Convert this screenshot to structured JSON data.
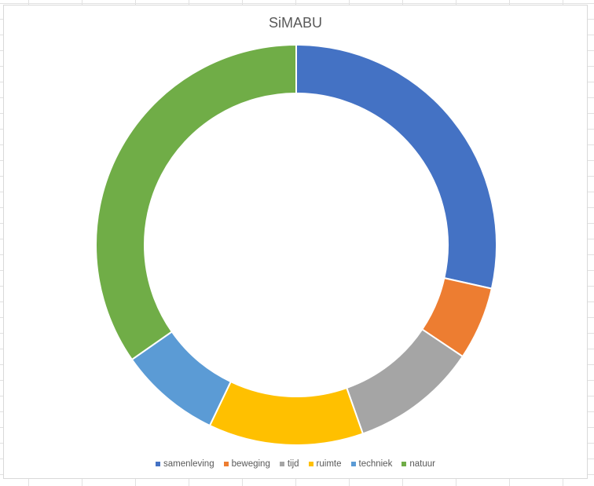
{
  "chart_data": {
    "type": "pie",
    "variant": "doughnut",
    "title": "SiMABU",
    "categories": [
      "samenleving",
      "beweging",
      "tijd",
      "ruimte",
      "techniek",
      "natuur"
    ],
    "values": [
      28.5,
      5.9,
      10.2,
      12.5,
      8.2,
      34.7
    ],
    "colors": [
      "#4472C4",
      "#ED7D31",
      "#A5A5A5",
      "#FFC000",
      "#5B9BD5",
      "#70AD47"
    ],
    "legend_position": "bottom",
    "start_angle_deg": 0,
    "direction": "clockwise"
  }
}
